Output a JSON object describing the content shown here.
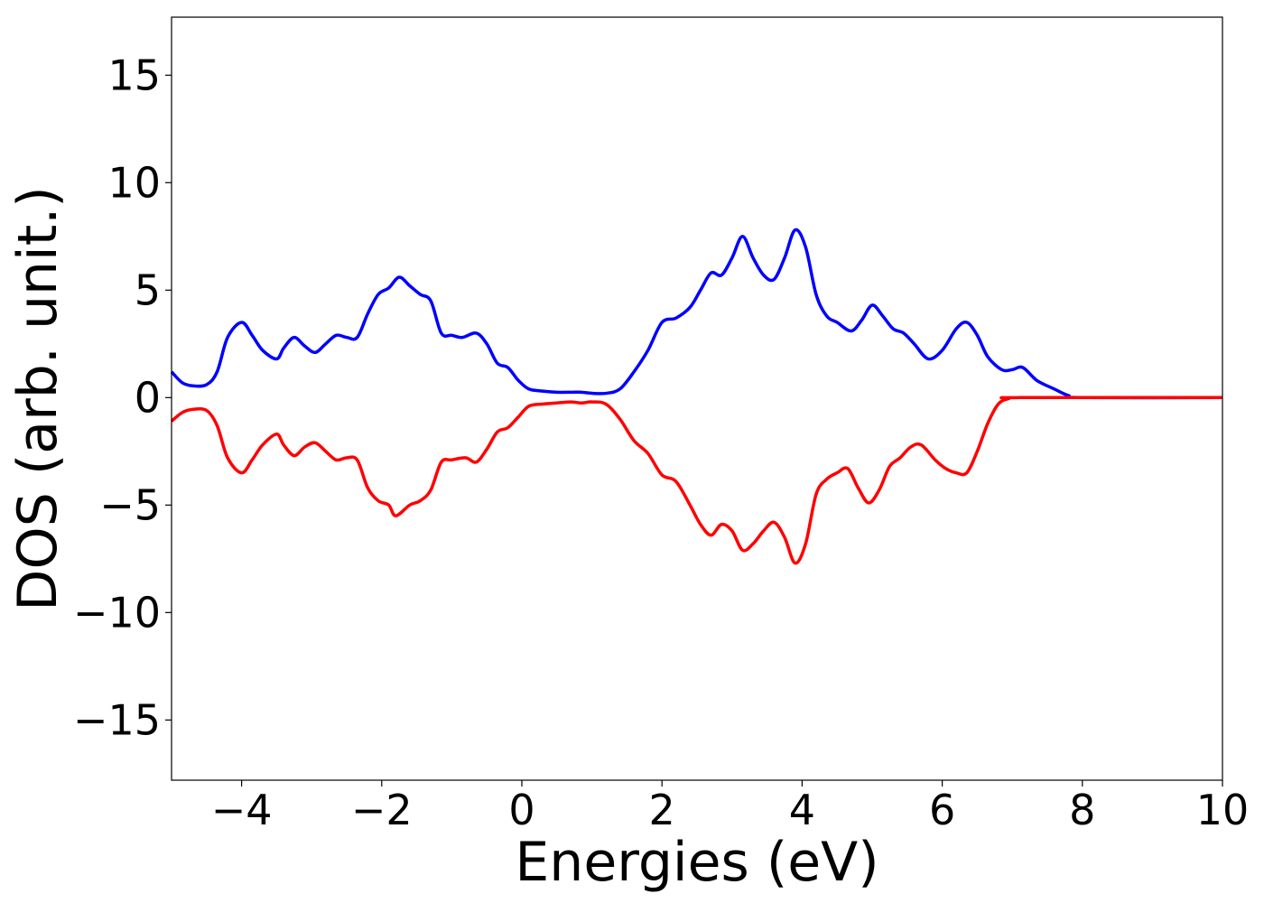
{
  "chart_data": {
    "type": "line",
    "title": "",
    "xlabel": "Energies (eV)",
    "ylabel": "DOS (arb. unit.)",
    "xlim": [
      -5,
      10
    ],
    "ylim": [
      -17.8,
      17.7
    ],
    "grid": false,
    "xticks": [
      -4,
      -2,
      0,
      2,
      4,
      6,
      8,
      10
    ],
    "yticks": [
      -15,
      -10,
      -5,
      0,
      5,
      10,
      15
    ],
    "xtick_labels": [
      "−4",
      "−2",
      "0",
      "2",
      "4",
      "6",
      "8",
      "10"
    ],
    "ytick_labels": [
      "−15",
      "−10",
      "−5",
      "0",
      "5",
      "10",
      "15"
    ],
    "series": [
      {
        "color": "#0000ff",
        "points": [
          [
            -5.0,
            1.2
          ],
          [
            -4.85,
            0.7
          ],
          [
            -4.7,
            0.55
          ],
          [
            -4.5,
            0.6
          ],
          [
            -4.35,
            1.2
          ],
          [
            -4.2,
            2.8
          ],
          [
            -4.0,
            3.5
          ],
          [
            -3.85,
            2.9
          ],
          [
            -3.7,
            2.2
          ],
          [
            -3.5,
            1.8
          ],
          [
            -3.4,
            2.3
          ],
          [
            -3.25,
            2.8
          ],
          [
            -3.1,
            2.4
          ],
          [
            -2.95,
            2.1
          ],
          [
            -2.8,
            2.5
          ],
          [
            -2.65,
            2.9
          ],
          [
            -2.5,
            2.8
          ],
          [
            -2.35,
            2.8
          ],
          [
            -2.2,
            3.9
          ],
          [
            -2.05,
            4.8
          ],
          [
            -1.9,
            5.1
          ],
          [
            -1.75,
            5.6
          ],
          [
            -1.6,
            5.2
          ],
          [
            -1.45,
            4.8
          ],
          [
            -1.3,
            4.5
          ],
          [
            -1.15,
            3.0
          ],
          [
            -1.0,
            2.9
          ],
          [
            -0.85,
            2.8
          ],
          [
            -0.65,
            3.0
          ],
          [
            -0.5,
            2.5
          ],
          [
            -0.35,
            1.6
          ],
          [
            -0.2,
            1.4
          ],
          [
            -0.05,
            0.8
          ],
          [
            0.1,
            0.4
          ],
          [
            0.3,
            0.3
          ],
          [
            0.5,
            0.25
          ],
          [
            0.7,
            0.25
          ],
          [
            0.85,
            0.25
          ],
          [
            1.0,
            0.2
          ],
          [
            1.2,
            0.2
          ],
          [
            1.4,
            0.4
          ],
          [
            1.6,
            1.2
          ],
          [
            1.8,
            2.2
          ],
          [
            2.0,
            3.5
          ],
          [
            2.2,
            3.7
          ],
          [
            2.4,
            4.2
          ],
          [
            2.55,
            5.0
          ],
          [
            2.7,
            5.8
          ],
          [
            2.85,
            5.7
          ],
          [
            3.0,
            6.5
          ],
          [
            3.15,
            7.5
          ],
          [
            3.3,
            6.5
          ],
          [
            3.45,
            5.7
          ],
          [
            3.6,
            5.5
          ],
          [
            3.75,
            6.5
          ],
          [
            3.9,
            7.8
          ],
          [
            4.05,
            7.0
          ],
          [
            4.2,
            4.8
          ],
          [
            4.35,
            3.8
          ],
          [
            4.5,
            3.5
          ],
          [
            4.7,
            3.1
          ],
          [
            4.85,
            3.6
          ],
          [
            5.0,
            4.3
          ],
          [
            5.15,
            3.8
          ],
          [
            5.3,
            3.2
          ],
          [
            5.45,
            3.0
          ],
          [
            5.6,
            2.5
          ],
          [
            5.8,
            1.8
          ],
          [
            6.0,
            2.2
          ],
          [
            6.2,
            3.2
          ],
          [
            6.35,
            3.5
          ],
          [
            6.5,
            2.9
          ],
          [
            6.65,
            1.9
          ],
          [
            6.85,
            1.3
          ],
          [
            7.0,
            1.3
          ],
          [
            7.15,
            1.4
          ],
          [
            7.35,
            0.8
          ],
          [
            7.6,
            0.4
          ],
          [
            7.8,
            0.1
          ],
          [
            8.0,
            0.0
          ],
          [
            10.0,
            0.0
          ]
        ]
      },
      {
        "color": "#ff0000",
        "points": [
          [
            -5.0,
            -1.1
          ],
          [
            -4.85,
            -0.7
          ],
          [
            -4.7,
            -0.55
          ],
          [
            -4.5,
            -0.6
          ],
          [
            -4.35,
            -1.3
          ],
          [
            -4.2,
            -2.8
          ],
          [
            -4.0,
            -3.5
          ],
          [
            -3.85,
            -2.9
          ],
          [
            -3.7,
            -2.2
          ],
          [
            -3.5,
            -1.7
          ],
          [
            -3.4,
            -2.2
          ],
          [
            -3.25,
            -2.7
          ],
          [
            -3.1,
            -2.3
          ],
          [
            -2.95,
            -2.1
          ],
          [
            -2.8,
            -2.5
          ],
          [
            -2.65,
            -2.9
          ],
          [
            -2.5,
            -2.8
          ],
          [
            -2.35,
            -2.9
          ],
          [
            -2.2,
            -4.2
          ],
          [
            -2.05,
            -4.8
          ],
          [
            -1.9,
            -5.0
          ],
          [
            -1.8,
            -5.5
          ],
          [
            -1.6,
            -5.0
          ],
          [
            -1.45,
            -4.8
          ],
          [
            -1.3,
            -4.3
          ],
          [
            -1.15,
            -3.0
          ],
          [
            -1.0,
            -2.9
          ],
          [
            -0.8,
            -2.8
          ],
          [
            -0.65,
            -3.0
          ],
          [
            -0.5,
            -2.4
          ],
          [
            -0.35,
            -1.6
          ],
          [
            -0.2,
            -1.4
          ],
          [
            -0.05,
            -0.9
          ],
          [
            0.1,
            -0.4
          ],
          [
            0.3,
            -0.3
          ],
          [
            0.5,
            -0.25
          ],
          [
            0.7,
            -0.2
          ],
          [
            0.85,
            -0.25
          ],
          [
            1.0,
            -0.2
          ],
          [
            1.2,
            -0.3
          ],
          [
            1.4,
            -1.0
          ],
          [
            1.6,
            -2.0
          ],
          [
            1.8,
            -2.6
          ],
          [
            2.0,
            -3.6
          ],
          [
            2.2,
            -3.9
          ],
          [
            2.4,
            -5.0
          ],
          [
            2.55,
            -5.9
          ],
          [
            2.7,
            -6.4
          ],
          [
            2.85,
            -5.9
          ],
          [
            3.0,
            -6.2
          ],
          [
            3.15,
            -7.1
          ],
          [
            3.3,
            -6.8
          ],
          [
            3.45,
            -6.2
          ],
          [
            3.6,
            -5.8
          ],
          [
            3.75,
            -6.5
          ],
          [
            3.9,
            -7.7
          ],
          [
            4.05,
            -6.8
          ],
          [
            4.2,
            -4.5
          ],
          [
            4.35,
            -3.8
          ],
          [
            4.5,
            -3.5
          ],
          [
            4.65,
            -3.3
          ],
          [
            4.8,
            -4.2
          ],
          [
            4.95,
            -4.9
          ],
          [
            5.1,
            -4.3
          ],
          [
            5.25,
            -3.2
          ],
          [
            5.4,
            -2.8
          ],
          [
            5.55,
            -2.3
          ],
          [
            5.7,
            -2.2
          ],
          [
            5.9,
            -2.9
          ],
          [
            6.05,
            -3.3
          ],
          [
            6.2,
            -3.5
          ],
          [
            6.35,
            -3.5
          ],
          [
            6.5,
            -2.5
          ],
          [
            6.65,
            -1.2
          ],
          [
            6.8,
            -0.3
          ],
          [
            6.95,
            -0.05
          ],
          [
            7.1,
            0.0
          ],
          [
            10.0,
            0.0
          ]
        ]
      }
    ]
  }
}
